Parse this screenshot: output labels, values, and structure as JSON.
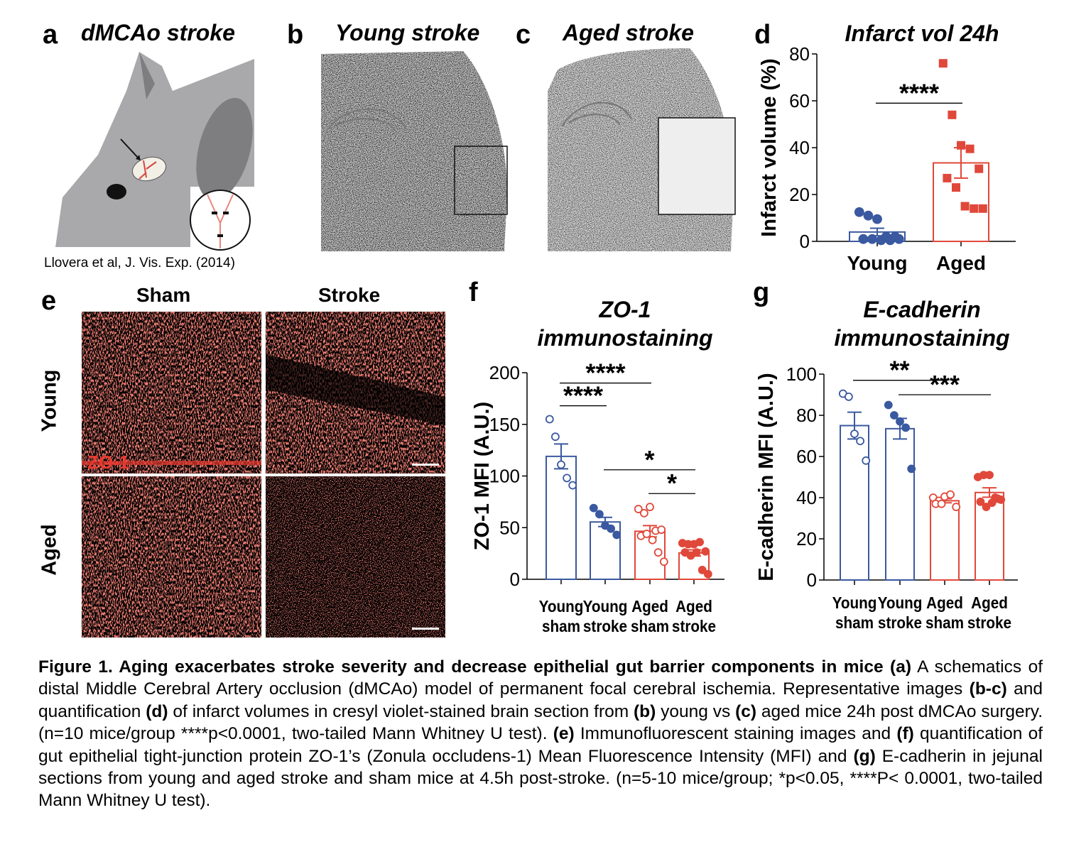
{
  "panels": {
    "a": {
      "letter": "a",
      "title": "dMCAo stroke",
      "credit": "Llovera et al, J. Vis. Exp. (2014)"
    },
    "b": {
      "letter": "b",
      "title": "Young stroke"
    },
    "c": {
      "letter": "c",
      "title": "Aged stroke"
    },
    "d": {
      "letter": "d"
    },
    "e": {
      "letter": "e",
      "col_headers": [
        "Sham",
        "Stroke"
      ],
      "row_headers": [
        "Young",
        "Aged"
      ],
      "stain_label": "ZO-1"
    },
    "f": {
      "letter": "f"
    },
    "g": {
      "letter": "g"
    }
  },
  "colors": {
    "young": "#3a59a0",
    "aged": "#e0483a",
    "stain": "#e8392f"
  },
  "chart_data": [
    {
      "id": "d",
      "type": "bar",
      "title": "Infarct vol 24h",
      "ylabel": "Infarct volume (%)",
      "xlabel": "",
      "categories": [
        "Young",
        "Aged"
      ],
      "ylim": [
        0,
        80
      ],
      "yticks": [
        0,
        20,
        40,
        60,
        80
      ],
      "series": [
        {
          "name": "Young",
          "mean": 4,
          "sem": 1.6,
          "color": "young",
          "marker": "circle",
          "filled": true,
          "points": [
            12.5,
            11,
            9.5,
            2,
            2,
            1,
            1,
            0.5,
            0.5,
            1
          ]
        },
        {
          "name": "Aged",
          "mean": 33.5,
          "sem": 6.5,
          "color": "aged",
          "marker": "square",
          "filled": true,
          "points": [
            76,
            54,
            41,
            39.5,
            31,
            27,
            23,
            15,
            14,
            14
          ]
        }
      ],
      "significance": [
        {
          "from": 0,
          "to": 1,
          "y": 59,
          "label": "****"
        }
      ]
    },
    {
      "id": "f",
      "type": "bar",
      "title": [
        "ZO-1",
        "immunostaining"
      ],
      "ylabel": "ZO-1 MFI (A.U.)",
      "xlabel": "",
      "categories": [
        [
          "Young",
          "sham"
        ],
        [
          "Young",
          "stroke"
        ],
        [
          "Aged",
          "sham"
        ],
        [
          "Aged",
          "stroke"
        ]
      ],
      "ylim": [
        0,
        200
      ],
      "yticks": [
        0,
        50,
        100,
        150,
        200
      ],
      "series": [
        {
          "name": "Young sham",
          "mean": 119,
          "sem": 12,
          "color": "young",
          "marker": "circle",
          "filled": false,
          "points": [
            155,
            138,
            111,
            98,
            91
          ]
        },
        {
          "name": "Young stroke",
          "mean": 55.5,
          "sem": 4.5,
          "color": "young",
          "marker": "circle",
          "filled": true,
          "points": [
            69,
            63,
            52,
            49,
            43
          ]
        },
        {
          "name": "Aged sham",
          "mean": 46.5,
          "sem": 5.5,
          "color": "aged",
          "marker": "circle",
          "filled": false,
          "points": [
            68,
            64,
            70,
            47,
            48,
            42,
            44,
            38,
            26,
            17
          ]
        },
        {
          "name": "Aged stroke",
          "mean": 25.5,
          "sem": 3,
          "color": "aged",
          "marker": "circle",
          "filled": true,
          "points": [
            35,
            34,
            34,
            36,
            27,
            26,
            23,
            26,
            9,
            5
          ]
        }
      ],
      "significance": [
        {
          "from": 0,
          "to": 2,
          "y": 190,
          "label": "****"
        },
        {
          "from": 0,
          "to": 1,
          "y": 168,
          "label": "****"
        },
        {
          "from": 1,
          "to": 3,
          "y": 106,
          "label": "*"
        },
        {
          "from": 2,
          "to": 3,
          "y": 83,
          "label": "*"
        }
      ]
    },
    {
      "id": "g",
      "type": "bar",
      "title": [
        "E-cadherin",
        "immunostaining"
      ],
      "ylabel": "E-cadherin MFI (A.U.)",
      "xlabel": "",
      "categories": [
        [
          "Young",
          "sham"
        ],
        [
          "Young",
          "stroke"
        ],
        [
          "Aged",
          "sham"
        ],
        [
          "Aged",
          "stroke"
        ]
      ],
      "ylim": [
        0,
        100
      ],
      "yticks": [
        0,
        20,
        40,
        60,
        80,
        100
      ],
      "series": [
        {
          "name": "Young sham",
          "mean": 75,
          "sem": 6.5,
          "color": "young",
          "marker": "circle",
          "filled": false,
          "points": [
            90.5,
            89,
            71,
            67.5,
            58
          ]
        },
        {
          "name": "Young stroke",
          "mean": 73.5,
          "sem": 5,
          "color": "young",
          "marker": "circle",
          "filled": true,
          "points": [
            85,
            80,
            77,
            74,
            54
          ]
        },
        {
          "name": "Aged sham",
          "mean": 38.5,
          "sem": 1,
          "color": "aged",
          "marker": "circle",
          "filled": false,
          "points": [
            40,
            38.5,
            40.5,
            41.5,
            35.5,
            37,
            37
          ]
        },
        {
          "name": "Aged stroke",
          "mean": 42.5,
          "sem": 2.3,
          "color": "aged",
          "marker": "circle",
          "filled": true,
          "points": [
            50,
            51,
            51,
            40,
            39,
            38,
            35.5,
            37.5,
            39.5
          ]
        }
      ],
      "significance": [
        {
          "from": 0,
          "to": 2,
          "y": 97,
          "label": "**"
        },
        {
          "from": 1,
          "to": 3,
          "y": 90,
          "label": "***"
        }
      ]
    }
  ],
  "caption": [
    {
      "text": "Figure 1. Aging exacerbates stroke severity and decrease epithelial gut barrier components in mice (a)",
      "bold": true
    },
    {
      "text": " A schematics of distal Middle Cerebral Artery occlusion (dMCAo) model of permanent focal cerebral ischemia. Representative images ",
      "bold": false
    },
    {
      "text": "(b-c)",
      "bold": true
    },
    {
      "text": " and quantification ",
      "bold": false
    },
    {
      "text": "(d)",
      "bold": true
    },
    {
      "text": " of infarct volumes in cresyl violet-stained brain section from ",
      "bold": false
    },
    {
      "text": "(b)",
      "bold": true
    },
    {
      "text": " young vs ",
      "bold": false
    },
    {
      "text": "(c)",
      "bold": true
    },
    {
      "text": " aged mice 24h post dMCAo surgery. (n=10 mice/group ****p<0.0001, two-tailed Mann Whitney U test). ",
      "bold": false
    },
    {
      "text": "(e)",
      "bold": true
    },
    {
      "text": " Immunofluorescent staining images and ",
      "bold": false
    },
    {
      "text": "(f)",
      "bold": true
    },
    {
      "text": " quantification of gut epithelial tight-junction protein ZO-1’s (Zonula occludens-1) Mean Fluorescence Intensity (MFI) and ",
      "bold": false
    },
    {
      "text": "(g)",
      "bold": true
    },
    {
      "text": " E-cadherin in jejunal sections from young and aged stroke and sham mice at 4.5h post-stroke. (n=5-10 mice/group; *p<0.05, ****P< 0.0001, two-tailed Mann Whitney U test).",
      "bold": false
    }
  ]
}
